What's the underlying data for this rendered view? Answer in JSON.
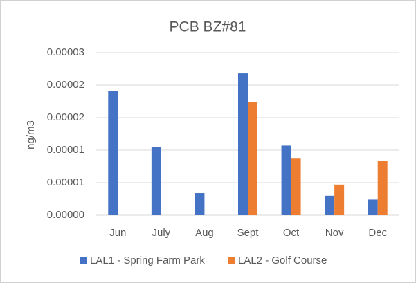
{
  "chart_data": {
    "type": "bar",
    "title": "PCB BZ#81",
    "y_label": "ng/m3",
    "categories": [
      "Jun",
      "July",
      "Aug",
      "Sept",
      "Oct",
      "Nov",
      "Dec"
    ],
    "series": [
      {
        "name": "LAL1 - Spring Farm Park",
        "color": "#4472c4",
        "values": [
          1.91e-05,
          1.05e-05,
          3.4e-06,
          2.18e-05,
          1.07e-05,
          3e-06,
          2.4e-06
        ]
      },
      {
        "name": "LAL2 - Golf Course",
        "color": "#ed7d31",
        "values": [
          null,
          null,
          null,
          1.74e-05,
          8.7e-06,
          4.7e-06,
          8.3e-06
        ]
      }
    ],
    "ylim": [
      0,
      2.5e-05
    ],
    "yticks": [
      {
        "value": 0,
        "label": "0.00000"
      },
      {
        "value": 5e-06,
        "label": "0.00001"
      },
      {
        "value": 1e-05,
        "label": "0.00001"
      },
      {
        "value": 1.5e-05,
        "label": "0.00002"
      },
      {
        "value": 2e-05,
        "label": "0.00002"
      },
      {
        "value": 2.5e-05,
        "label": "0.00003"
      }
    ],
    "grid": true,
    "legend": "bottom"
  }
}
